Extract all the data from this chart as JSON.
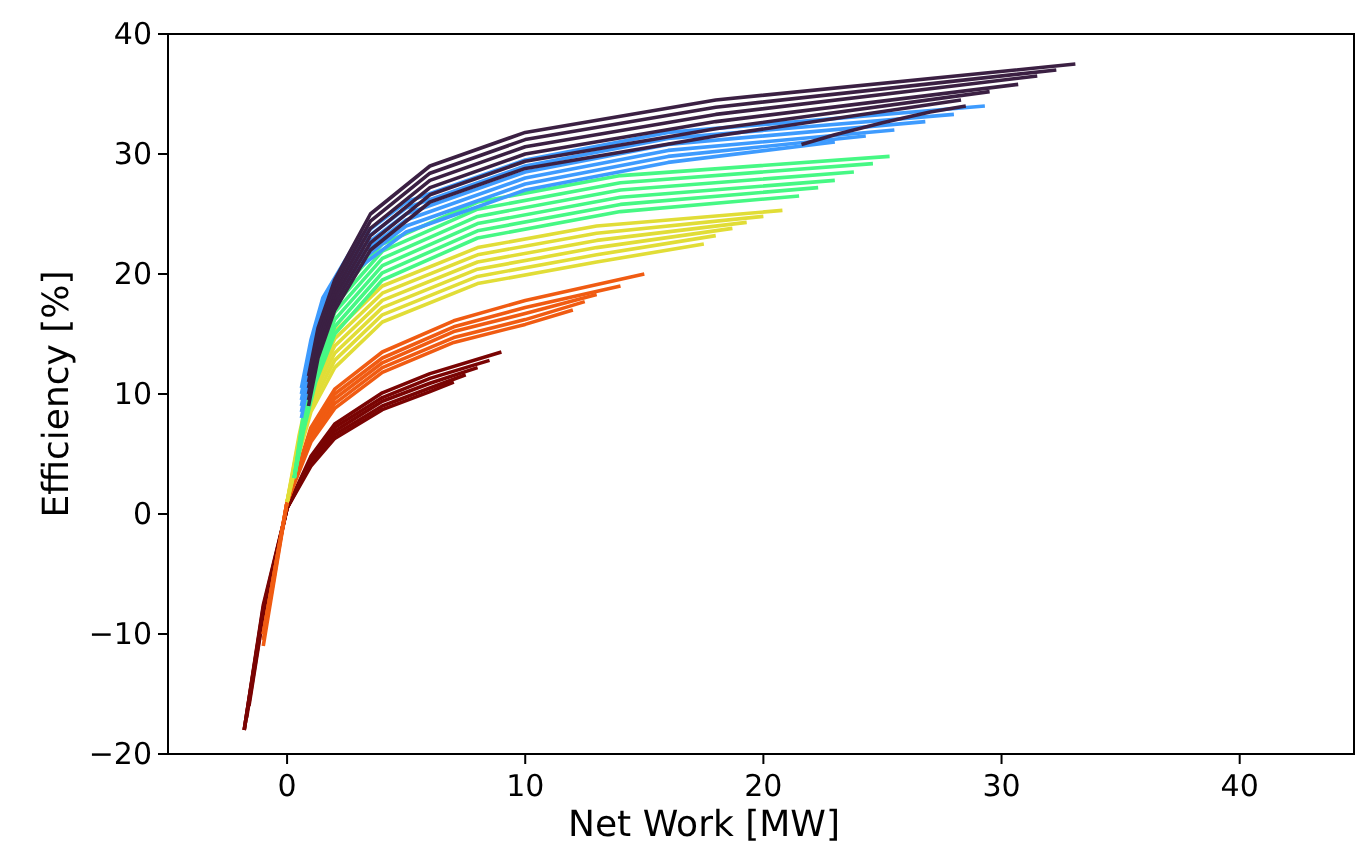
{
  "chart_data": {
    "type": "line",
    "xlabel": "Net Work [MW]",
    "ylabel": "Efficiency [%]",
    "xlim": [
      -5,
      44.8
    ],
    "ylim": [
      -20,
      40
    ],
    "xticks": [
      0,
      10,
      20,
      30,
      40
    ],
    "yticks": [
      -20,
      -10,
      0,
      10,
      20,
      30,
      40
    ],
    "series": [
      {
        "color": "#7a0403",
        "x": [
          -1.6,
          -1,
          0,
          1,
          2,
          4,
          6,
          7
        ],
        "values": [
          -16,
          -8.5,
          0.5,
          4,
          6.3,
          8.7,
          10.2,
          11
        ]
      },
      {
        "color": "#7a0403",
        "x": [
          -1.7,
          -1,
          0,
          1,
          2,
          4,
          6,
          7.5
        ],
        "values": [
          -17,
          -8.3,
          0.5,
          4.2,
          6.6,
          9,
          10.5,
          11.6
        ]
      },
      {
        "color": "#7a0403",
        "x": [
          -1.8,
          -1,
          0,
          1,
          2,
          4,
          6,
          8
        ],
        "values": [
          -18,
          -8,
          0.5,
          4.4,
          6.9,
          9.4,
          10.9,
          12.2
        ]
      },
      {
        "color": "#7a0403",
        "x": [
          -1.8,
          -1,
          0,
          1,
          2,
          4,
          6,
          8.5
        ],
        "values": [
          -18,
          -7.8,
          0.5,
          4.6,
          7.2,
          9.7,
          11.3,
          12.8
        ]
      },
      {
        "color": "#7a0403",
        "x": [
          -1.8,
          -1,
          0,
          1,
          2,
          4,
          6,
          9
        ],
        "values": [
          -18,
          -7.6,
          0.5,
          4.8,
          7.5,
          10.1,
          11.7,
          13.5
        ]
      },
      {
        "color": "#f05b12",
        "x": [
          -1,
          0,
          1,
          2,
          4,
          7,
          10,
          12
        ],
        "values": [
          -11,
          1,
          6,
          8.8,
          11.8,
          14.3,
          15.8,
          17
        ]
      },
      {
        "color": "#f05b12",
        "x": [
          -1,
          0,
          1,
          2,
          4,
          7,
          10,
          12.5
        ],
        "values": [
          -10.5,
          1,
          6.3,
          9.2,
          12.2,
          14.7,
          16.2,
          17.7
        ]
      },
      {
        "color": "#f05b12",
        "x": [
          -1,
          0,
          1,
          2,
          4,
          7,
          10,
          13
        ],
        "values": [
          -10,
          1,
          6.6,
          9.6,
          12.6,
          15.2,
          16.7,
          18.3
        ]
      },
      {
        "color": "#f05b12",
        "x": [
          -1,
          0,
          1,
          2,
          4,
          7,
          10,
          14
        ],
        "values": [
          -10,
          1,
          6.9,
          10,
          13,
          15.6,
          17.2,
          19
        ]
      },
      {
        "color": "#f05b12",
        "x": [
          -1,
          0,
          1,
          2,
          4,
          7,
          10,
          15
        ],
        "values": [
          -10,
          1,
          7.2,
          10.4,
          13.5,
          16.1,
          17.8,
          20
        ]
      },
      {
        "color": "#e1dd37",
        "x": [
          0,
          0.5,
          1,
          2,
          4,
          8,
          13,
          17.5
        ],
        "values": [
          1,
          5,
          8.5,
          12.2,
          16,
          19.2,
          21,
          22.5
        ]
      },
      {
        "color": "#e1dd37",
        "x": [
          0,
          0.5,
          1,
          2,
          4,
          8,
          13,
          18
        ],
        "values": [
          1,
          5.3,
          9,
          12.8,
          16.6,
          19.8,
          21.6,
          23.2
        ]
      },
      {
        "color": "#e1dd37",
        "x": [
          0,
          0.5,
          1,
          2,
          4,
          8,
          13,
          18.7
        ],
        "values": [
          1,
          5.6,
          9.5,
          13.4,
          17.2,
          20.4,
          22.2,
          23.8
        ]
      },
      {
        "color": "#e1dd37",
        "x": [
          0,
          0.5,
          1,
          2,
          4,
          8,
          13,
          19.3
        ],
        "values": [
          1,
          5.9,
          10,
          14,
          17.8,
          21,
          22.8,
          24.3
        ]
      },
      {
        "color": "#e1dd37",
        "x": [
          0,
          0.5,
          1,
          2,
          4,
          8,
          13,
          20
        ],
        "values": [
          1,
          6.2,
          10.5,
          14.6,
          18.4,
          21.6,
          23.4,
          24.8
        ]
      },
      {
        "color": "#e1dd37",
        "x": [
          0,
          0.5,
          1,
          2,
          4,
          8,
          13,
          20.8
        ],
        "values": [
          1,
          6.5,
          11,
          15.2,
          19,
          22.2,
          24,
          25.3
        ]
      },
      {
        "color": "#46f884",
        "x": [
          0.3,
          0.7,
          1.2,
          2,
          4,
          8,
          14,
          21.5
        ],
        "values": [
          3,
          7,
          11,
          15,
          19.5,
          23,
          25.2,
          26.5
        ]
      },
      {
        "color": "#46f884",
        "x": [
          0.3,
          0.7,
          1.2,
          2,
          4,
          8,
          14,
          22.3
        ],
        "values": [
          3,
          7.3,
          11.5,
          15.6,
          20.1,
          23.6,
          25.8,
          27.2
        ]
      },
      {
        "color": "#46f884",
        "x": [
          0.3,
          0.7,
          1.2,
          2,
          4,
          8,
          14,
          23
        ],
        "values": [
          3,
          7.6,
          12,
          16.2,
          20.7,
          24.2,
          26.4,
          27.8
        ]
      },
      {
        "color": "#46f884",
        "x": [
          0.3,
          0.7,
          1.2,
          2,
          4,
          8,
          14,
          23.8
        ],
        "values": [
          3,
          7.9,
          12.5,
          16.8,
          21.3,
          24.8,
          27,
          28.5
        ]
      },
      {
        "color": "#46f884",
        "x": [
          0.3,
          0.7,
          1.2,
          2,
          4,
          8,
          14,
          24.6
        ],
        "values": [
          3,
          8.2,
          13,
          17.4,
          21.9,
          25.4,
          27.6,
          29.2
        ]
      },
      {
        "color": "#46f884",
        "x": [
          0.3,
          0.7,
          1.2,
          2,
          4,
          8,
          14,
          25.3
        ],
        "values": [
          3,
          8.5,
          13.5,
          18,
          22.5,
          26,
          28.2,
          29.8
        ]
      },
      {
        "color": "#3e9bfe",
        "x": [
          0.6,
          1,
          1.5,
          3,
          5,
          10,
          16,
          23
        ],
        "values": [
          8,
          12,
          15.5,
          20.5,
          23.5,
          27,
          29.3,
          31
        ]
      },
      {
        "color": "#3e9bfe",
        "x": [
          0.6,
          1,
          1.5,
          3,
          5,
          10,
          16,
          24.3
        ],
        "values": [
          8.5,
          12.5,
          16,
          21,
          24,
          27.5,
          29.8,
          31.5
        ]
      },
      {
        "color": "#3e9bfe",
        "x": [
          0.6,
          1,
          1.5,
          3,
          5,
          10,
          16,
          25.5
        ],
        "values": [
          9,
          13,
          16.5,
          21.5,
          24.5,
          28,
          30.3,
          32
        ]
      },
      {
        "color": "#3e9bfe",
        "x": [
          0.6,
          1,
          1.5,
          3,
          5,
          10,
          16,
          26.8
        ],
        "values": [
          9.5,
          13.5,
          17,
          22,
          25,
          28.5,
          30.8,
          32.7
        ]
      },
      {
        "color": "#3e9bfe",
        "x": [
          0.6,
          1,
          1.5,
          3,
          5,
          10,
          16,
          28
        ],
        "values": [
          10,
          14,
          17.5,
          22.5,
          25.5,
          29,
          31.3,
          33.3
        ]
      },
      {
        "color": "#3e9bfe",
        "x": [
          0.6,
          1,
          1.5,
          3,
          5,
          10,
          16,
          29.3
        ],
        "values": [
          10.5,
          14.5,
          18,
          23,
          26,
          29.5,
          31.8,
          34
        ]
      },
      {
        "color": "#3b2043",
        "x": [
          0.9,
          1.3,
          2,
          3.5,
          6,
          10,
          18,
          28.3
        ],
        "values": [
          9,
          13,
          17,
          22,
          26,
          28.8,
          31.5,
          34.5
        ]
      },
      {
        "color": "#3b2043",
        "x": [
          0.9,
          1.3,
          2,
          3.5,
          6,
          10,
          18,
          29.5
        ],
        "values": [
          9.5,
          13.5,
          17.5,
          22.6,
          26.6,
          29.4,
          32.1,
          35.2
        ]
      },
      {
        "color": "#3b2043",
        "x": [
          0.9,
          1.3,
          2,
          3.5,
          6,
          10,
          18,
          30.7
        ],
        "values": [
          10,
          14,
          18,
          23.2,
          27.2,
          30,
          32.7,
          35.8
        ]
      },
      {
        "color": "#3b2043",
        "x": [
          0.9,
          1.3,
          2,
          3.5,
          6,
          10,
          18,
          31.5
        ],
        "values": [
          10.5,
          14.5,
          18.5,
          23.8,
          27.8,
          30.6,
          33.3,
          36.5
        ]
      },
      {
        "color": "#3b2043",
        "x": [
          0.9,
          1.3,
          2,
          3.5,
          6,
          10,
          18,
          32.3
        ],
        "values": [
          11,
          15,
          19,
          24.4,
          28.4,
          31.2,
          33.9,
          37
        ]
      },
      {
        "color": "#3b2043",
        "x": [
          0.9,
          1.3,
          2,
          3.5,
          6,
          10,
          18,
          33.1
        ],
        "values": [
          11.5,
          15.5,
          19.5,
          25,
          29,
          31.8,
          34.5,
          37.5
        ]
      },
      {
        "color": "#3b2043",
        "x": [
          21.6,
          23,
          25,
          27,
          28.5
        ],
        "values": [
          30.8,
          31.6,
          32.6,
          33.5,
          34
        ]
      }
    ]
  }
}
